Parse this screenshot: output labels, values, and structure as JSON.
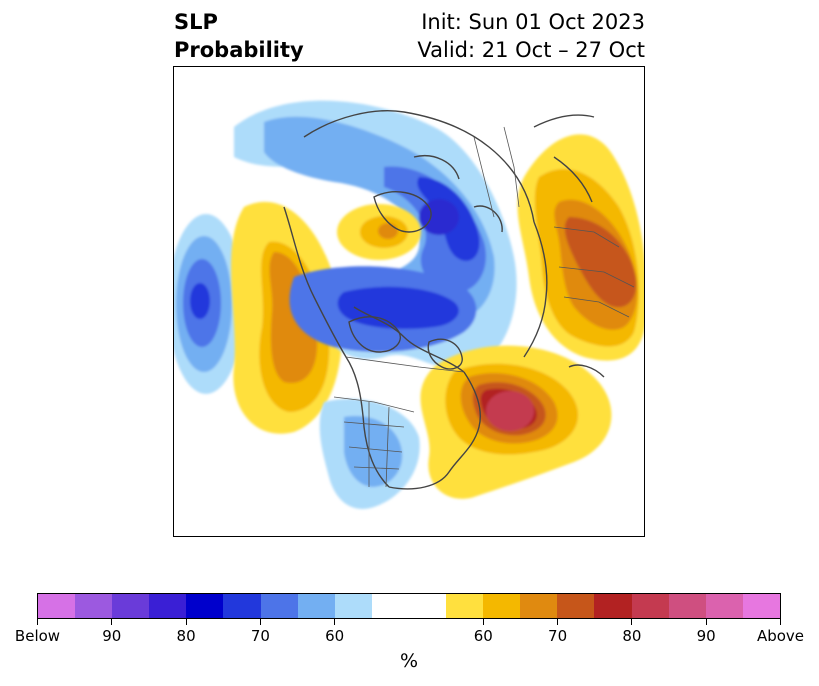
{
  "title": {
    "left_line1": "SLP",
    "left_line2": "Probability",
    "init": "Init: Sun 01 Oct 2023",
    "valid": "Valid: 21 Oct – 27 Oct"
  },
  "colorbar": {
    "unit": "%",
    "segments": [
      {
        "color": "#d671e6",
        "weight": 1
      },
      {
        "color": "#9c59e0",
        "weight": 1
      },
      {
        "color": "#6a3bd9",
        "weight": 1
      },
      {
        "color": "#3a1fd5",
        "weight": 1
      },
      {
        "color": "#0000cc",
        "weight": 1
      },
      {
        "color": "#2238dc",
        "weight": 1
      },
      {
        "color": "#4d74e8",
        "weight": 1
      },
      {
        "color": "#73aff2",
        "weight": 1
      },
      {
        "color": "#addcfa",
        "weight": 1
      },
      {
        "color": "#ffffff",
        "weight": 2
      },
      {
        "color": "#ffe03e",
        "weight": 1
      },
      {
        "color": "#f4b800",
        "weight": 1
      },
      {
        "color": "#e08a10",
        "weight": 1
      },
      {
        "color": "#c6561a",
        "weight": 1
      },
      {
        "color": "#b22222",
        "weight": 1
      },
      {
        "color": "#c43a50",
        "weight": 1
      },
      {
        "color": "#cf4f80",
        "weight": 1
      },
      {
        "color": "#db62ae",
        "weight": 1
      },
      {
        "color": "#e777e0",
        "weight": 1
      }
    ],
    "tick_labels": [
      "Below",
      "90",
      "80",
      "70",
      "60",
      "60",
      "70",
      "80",
      "90",
      "Above"
    ]
  }
}
